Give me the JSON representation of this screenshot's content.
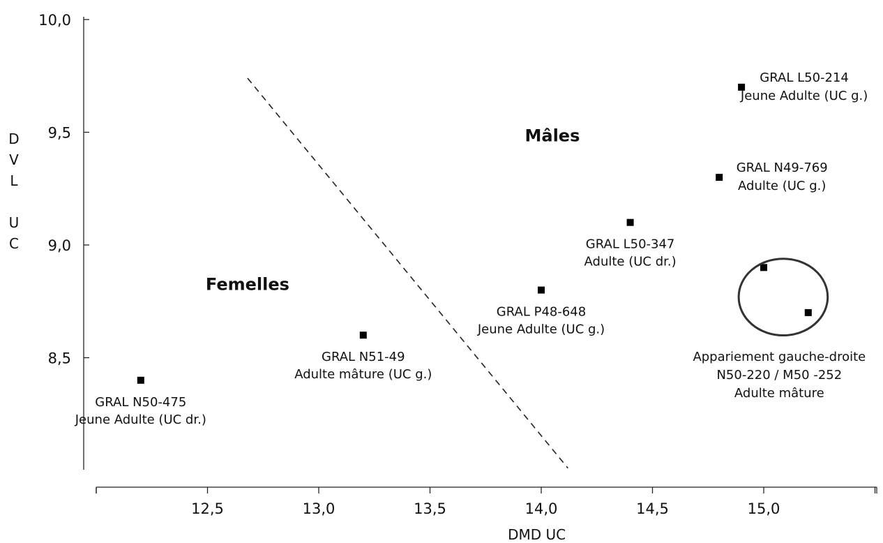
{
  "chart_data": {
    "type": "scatter",
    "title": "",
    "xlabel": "DMD UC",
    "ylabel": "DVL UC",
    "ylabel_lines": [
      "D",
      "V",
      "L",
      "",
      "U",
      "C"
    ],
    "xlim": [
      12.05,
      15.6
    ],
    "ylim": [
      8.0,
      10.0
    ],
    "x_ticks": [
      12.5,
      13.0,
      13.5,
      14.0,
      14.5,
      15.0
    ],
    "x_tick_labels": [
      "12,5",
      "13,0",
      "13,5",
      "14,0",
      "14,5",
      "15,0"
    ],
    "y_ticks": [
      8.5,
      9.0,
      9.5,
      10.0
    ],
    "y_tick_labels": [
      "8,5",
      "9,0",
      "9,5",
      "10,0"
    ],
    "grid": false,
    "points": [
      {
        "x": 12.2,
        "y": 8.4,
        "label": [
          "GRAL N50-475",
          "Jeune Adulte (UC dr.)"
        ],
        "label_pos": "below"
      },
      {
        "x": 13.2,
        "y": 8.6,
        "label": [
          "GRAL N51-49",
          "Adulte mâture (UC g.)"
        ],
        "label_pos": "below"
      },
      {
        "x": 14.0,
        "y": 8.8,
        "label": [
          "GRAL P48-648",
          "Jeune Adulte (UC g.)"
        ],
        "label_pos": "below"
      },
      {
        "x": 14.4,
        "y": 9.1,
        "label": [
          "GRAL L50-347",
          "Adulte (UC dr.)"
        ],
        "label_pos": "below"
      },
      {
        "x": 14.8,
        "y": 9.3,
        "label": [
          "GRAL N49-769",
          "Adulte (UC g.)"
        ],
        "label_pos": "right"
      },
      {
        "x": 14.9,
        "y": 9.7,
        "label": [
          "GRAL L50-214",
          "Jeune Adulte (UC g.)"
        ],
        "label_pos": "right"
      },
      {
        "x": 15.0,
        "y": 8.9,
        "label": [],
        "label_pos": "none"
      },
      {
        "x": 15.2,
        "y": 8.7,
        "label": [],
        "label_pos": "none"
      }
    ],
    "pair_annotation": {
      "lines": [
        "Appariement gauche-droite",
        "N50-220 / M50 -252",
        "Adulte mâture"
      ],
      "center": {
        "x": 15.1,
        "y": 8.8
      },
      "radius_x": 0.2,
      "radius_y": 0.17
    },
    "separator_line": {
      "from": {
        "x": 12.68,
        "y": 9.74
      },
      "to": {
        "x": 14.12,
        "y": 8.01
      },
      "style": "dashed"
    },
    "group_labels": [
      {
        "text": "Mâles",
        "x": 14.05,
        "y": 9.46
      },
      {
        "text": "Femelles",
        "x": 12.68,
        "y": 8.8
      }
    ]
  }
}
